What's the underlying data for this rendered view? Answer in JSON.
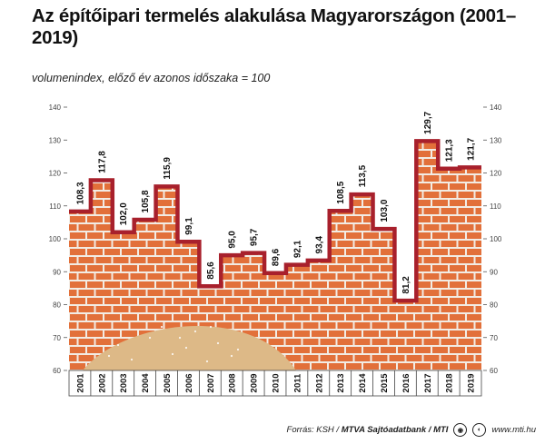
{
  "header": {
    "title": "Az építőipari termelés alakulása Magyarországon (2001–2019)",
    "subtitle": "volumenindex, előző év azonos időszaka = 100"
  },
  "footer": {
    "source_label": "Forrás: KSH / ",
    "source_bold": "MTVA Sajtóadatbank / MTI",
    "website": "www.mti.hu"
  },
  "colors": {
    "brick": "#e2703a",
    "mortar": "#f2ece4",
    "line": "#a8202c",
    "sand": "#ddb987",
    "label_bg": "#ffffff"
  },
  "chart_data": {
    "type": "line",
    "step": true,
    "title": "Az építőipari termelés alakulása Magyarországon (2001–2019)",
    "ylabel": "",
    "xlabel": "",
    "categories": [
      "2001",
      "2002",
      "2003",
      "2004",
      "2005",
      "2006",
      "2007",
      "2008",
      "2009",
      "2010",
      "2011",
      "2012",
      "2013",
      "2014",
      "2015",
      "2016",
      "2017",
      "2018",
      "2019"
    ],
    "values": [
      108.3,
      117.8,
      102.0,
      105.8,
      115.9,
      99.1,
      85.6,
      95.0,
      95.7,
      89.6,
      92.1,
      93.4,
      108.5,
      113.5,
      103.0,
      81.2,
      129.7,
      121.3,
      121.7
    ],
    "value_labels": [
      "108,3",
      "117,8",
      "102,0",
      "105,8",
      "115,9",
      "99,1",
      "85,6",
      "95,0",
      "95,7",
      "89,6",
      "92,1",
      "93,4",
      "108,5",
      "113,5",
      "103,0",
      "81,2",
      "129,7",
      "121,3",
      "121,7"
    ],
    "ylim": [
      60,
      140
    ],
    "yticks": [
      60,
      70,
      80,
      90,
      100,
      110,
      120,
      130,
      140
    ],
    "grid": false,
    "legend": "none"
  }
}
